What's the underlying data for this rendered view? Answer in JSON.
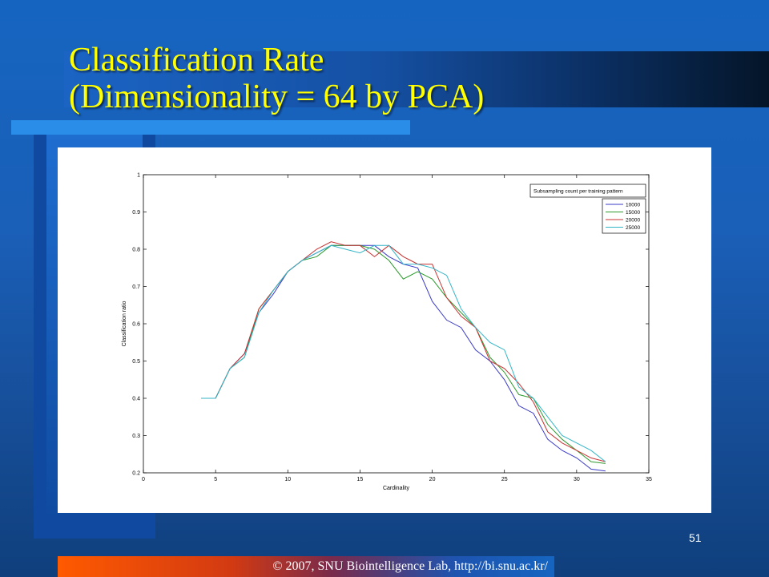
{
  "slide": {
    "title_line1": "Classification Rate",
    "title_line2": "(Dimensionality = 64 by PCA)",
    "page_number": "51",
    "footer": "© 2007, SNU Biointelligence Lab, http://bi.snu.ac.kr/",
    "title_color": "#ffff00"
  },
  "chart_data": {
    "type": "line",
    "title": "",
    "xlabel": "Cardinality",
    "ylabel": "Classification ratio",
    "xlim": [
      0,
      35
    ],
    "ylim": [
      0.2,
      1
    ],
    "xticks": [
      0,
      5,
      10,
      15,
      20,
      25,
      30,
      35
    ],
    "xtick_labels": [
      "0",
      "5",
      "10",
      "15",
      "20",
      "25",
      "30",
      "35"
    ],
    "yticks": [
      0.2,
      0.3,
      0.4,
      0.5,
      0.6,
      0.7,
      0.8,
      0.9,
      1
    ],
    "ytick_labels": [
      "0.2",
      "0.3",
      "0.4",
      "0.5",
      "0.6",
      "0.7",
      "0.8",
      "0.9",
      "1"
    ],
    "grid": false,
    "legend_title": "Subsampling count per training pattern",
    "legend_position": "top-right",
    "x": [
      4,
      5,
      6,
      7,
      8,
      9,
      10,
      11,
      12,
      13,
      14,
      15,
      16,
      17,
      18,
      19,
      20,
      21,
      22,
      23,
      24,
      25,
      26,
      27,
      28,
      29,
      30,
      31,
      32
    ],
    "series": [
      {
        "name": "10000",
        "color": "#3b3bc8",
        "values": [
          0.4,
          0.4,
          0.48,
          0.52,
          0.63,
          0.68,
          0.74,
          0.77,
          0.79,
          0.81,
          0.81,
          0.81,
          0.81,
          0.78,
          0.76,
          0.75,
          0.66,
          0.61,
          0.59,
          0.53,
          0.5,
          0.45,
          0.38,
          0.36,
          0.29,
          0.26,
          0.24,
          0.21,
          0.205
        ]
      },
      {
        "name": "15000",
        "color": "#2e9a2e",
        "values": [
          0.4,
          0.4,
          0.48,
          0.51,
          0.64,
          0.69,
          0.74,
          0.77,
          0.78,
          0.81,
          0.81,
          0.81,
          0.8,
          0.77,
          0.72,
          0.74,
          0.72,
          0.67,
          0.63,
          0.59,
          0.51,
          0.47,
          0.41,
          0.4,
          0.33,
          0.29,
          0.26,
          0.23,
          0.225
        ]
      },
      {
        "name": "20000",
        "color": "#c83232",
        "values": [
          0.4,
          0.4,
          0.48,
          0.52,
          0.64,
          0.69,
          0.74,
          0.77,
          0.8,
          0.82,
          0.81,
          0.81,
          0.78,
          0.81,
          0.78,
          0.76,
          0.76,
          0.67,
          0.62,
          0.59,
          0.5,
          0.48,
          0.44,
          0.39,
          0.31,
          0.28,
          0.26,
          0.24,
          0.23
        ]
      },
      {
        "name": "25000",
        "color": "#33b5c8",
        "values": [
          0.4,
          0.4,
          0.48,
          0.51,
          0.63,
          0.69,
          0.74,
          0.77,
          0.79,
          0.81,
          0.8,
          0.79,
          0.81,
          0.81,
          0.76,
          0.76,
          0.75,
          0.73,
          0.64,
          0.59,
          0.55,
          0.53,
          0.43,
          0.4,
          0.35,
          0.3,
          0.28,
          0.26,
          0.23
        ]
      }
    ]
  }
}
